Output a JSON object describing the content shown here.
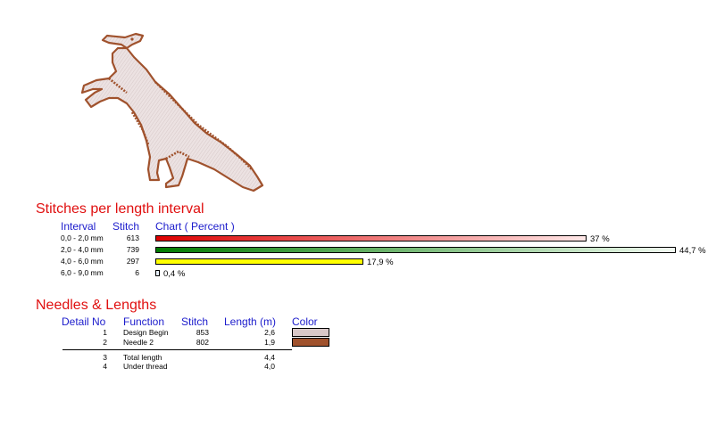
{
  "stitches_section": {
    "title": "Stitches per length interval",
    "headers": {
      "interval": "Interval",
      "stitch": "Stitch",
      "chart": "Chart ( Percent )"
    },
    "rows": [
      {
        "interval": "0,0 - 2,0 mm",
        "stitch": "613",
        "percent": 37.0,
        "percent_label": "37 %",
        "color_start": "#dd0000",
        "color_end": "#ffe8e8"
      },
      {
        "interval": "2,0 - 4,0 mm",
        "stitch": "739",
        "percent": 44.7,
        "percent_label": "44,7 %",
        "color_start": "#007a00",
        "color_end": "#f2fbf2"
      },
      {
        "interval": "4,0 - 6,0 mm",
        "stitch": "297",
        "percent": 17.9,
        "percent_label": "17,9 %",
        "color_start": "#ffff00",
        "color_end": "#ffff00"
      },
      {
        "interval": "6,0 - 9,0 mm",
        "stitch": "6",
        "percent": 0.4,
        "percent_label": "0,4 %",
        "color_start": "#e8f0ff",
        "color_end": "#e8f0ff"
      }
    ]
  },
  "needles_section": {
    "title": "Needles & Lengths",
    "headers": {
      "detail_no": "Detail No",
      "function": "Function",
      "stitch": "Stitch",
      "length": "Length (m)",
      "color": "Color"
    },
    "rows": [
      {
        "no": "1",
        "function": "Design Begin",
        "stitch": "853",
        "length": "2,6",
        "color": "#d9c8c8"
      },
      {
        "no": "2",
        "function": "Needle 2",
        "stitch": "802",
        "length": "1,9",
        "color": "#a0522d"
      }
    ],
    "totals": [
      {
        "no": "3",
        "function": "Total length",
        "length": "4,4"
      },
      {
        "no": "4",
        "function": "Under thread",
        "length": "4,0"
      }
    ]
  },
  "design_colors": {
    "fill": "#e8dede",
    "outline": "#a0522d"
  }
}
